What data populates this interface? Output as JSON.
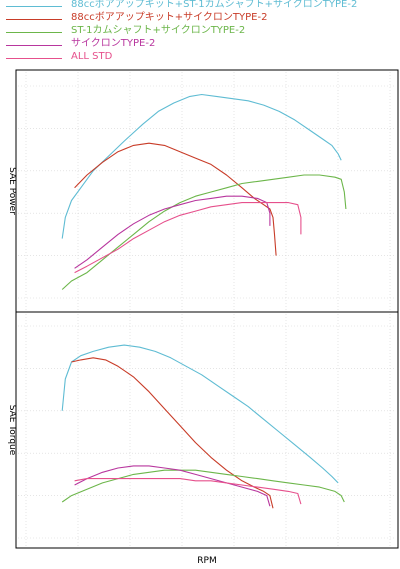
{
  "chart_data": {
    "type": "line",
    "xlabel": "RPM",
    "legend": {
      "placement": "top-left",
      "items": [
        {
          "label": "88ccボアアップキット+ST-1カムシャフト+サイクロンTYPE-2",
          "color": "#5fbcd3"
        },
        {
          "label": "88ccボアアップキット+サイクロンTYPE-2",
          "color": "#c83c28"
        },
        {
          "label": "ST-1カムシャフト+サイクロンTYPE-2",
          "color": "#6cb64a"
        },
        {
          "label": "サイクロンTYPE-2",
          "color": "#b8369e"
        },
        {
          "label": "ALL STD",
          "color": "#e6508c"
        }
      ]
    },
    "grid": true,
    "panels": [
      {
        "ylabel": "SAE Power",
        "series": [
          {
            "color": "#5fbcd3",
            "points": [
              [
                0.02,
                0.28
              ],
              [
                0.03,
                0.38
              ],
              [
                0.05,
                0.46
              ],
              [
                0.08,
                0.52
              ],
              [
                0.12,
                0.6
              ],
              [
                0.17,
                0.67
              ],
              [
                0.22,
                0.74
              ],
              [
                0.28,
                0.82
              ],
              [
                0.33,
                0.88
              ],
              [
                0.38,
                0.92
              ],
              [
                0.43,
                0.95
              ],
              [
                0.47,
                0.96
              ],
              [
                0.52,
                0.95
              ],
              [
                0.57,
                0.94
              ],
              [
                0.62,
                0.93
              ],
              [
                0.67,
                0.91
              ],
              [
                0.72,
                0.88
              ],
              [
                0.77,
                0.84
              ],
              [
                0.82,
                0.79
              ],
              [
                0.86,
                0.75
              ],
              [
                0.89,
                0.72
              ],
              [
                0.91,
                0.68
              ],
              [
                0.92,
                0.65
              ]
            ]
          },
          {
            "color": "#c83c28",
            "points": [
              [
                0.06,
                0.52
              ],
              [
                0.1,
                0.58
              ],
              [
                0.15,
                0.64
              ],
              [
                0.2,
                0.69
              ],
              [
                0.25,
                0.72
              ],
              [
                0.3,
                0.73
              ],
              [
                0.35,
                0.72
              ],
              [
                0.4,
                0.69
              ],
              [
                0.45,
                0.66
              ],
              [
                0.5,
                0.63
              ],
              [
                0.55,
                0.58
              ],
              [
                0.6,
                0.52
              ],
              [
                0.64,
                0.47
              ],
              [
                0.67,
                0.44
              ],
              [
                0.69,
                0.42
              ],
              [
                0.7,
                0.38
              ],
              [
                0.705,
                0.3
              ],
              [
                0.71,
                0.2
              ]
            ]
          },
          {
            "color": "#6cb64a",
            "points": [
              [
                0.02,
                0.04
              ],
              [
                0.05,
                0.08
              ],
              [
                0.1,
                0.12
              ],
              [
                0.15,
                0.18
              ],
              [
                0.2,
                0.24
              ],
              [
                0.25,
                0.3
              ],
              [
                0.3,
                0.36
              ],
              [
                0.35,
                0.41
              ],
              [
                0.4,
                0.45
              ],
              [
                0.45,
                0.48
              ],
              [
                0.5,
                0.5
              ],
              [
                0.55,
                0.52
              ],
              [
                0.6,
                0.54
              ],
              [
                0.65,
                0.55
              ],
              [
                0.7,
                0.56
              ],
              [
                0.75,
                0.57
              ],
              [
                0.8,
                0.58
              ],
              [
                0.85,
                0.58
              ],
              [
                0.9,
                0.57
              ],
              [
                0.92,
                0.56
              ],
              [
                0.93,
                0.5
              ],
              [
                0.935,
                0.42
              ]
            ]
          },
          {
            "color": "#b8369e",
            "points": [
              [
                0.06,
                0.14
              ],
              [
                0.1,
                0.18
              ],
              [
                0.15,
                0.24
              ],
              [
                0.2,
                0.3
              ],
              [
                0.25,
                0.35
              ],
              [
                0.3,
                0.39
              ],
              [
                0.35,
                0.42
              ],
              [
                0.4,
                0.44
              ],
              [
                0.45,
                0.46
              ],
              [
                0.5,
                0.47
              ],
              [
                0.55,
                0.48
              ],
              [
                0.6,
                0.48
              ],
              [
                0.65,
                0.47
              ],
              [
                0.68,
                0.45
              ],
              [
                0.69,
                0.4
              ],
              [
                0.69,
                0.34
              ]
            ]
          },
          {
            "color": "#e6508c",
            "points": [
              [
                0.06,
                0.12
              ],
              [
                0.1,
                0.15
              ],
              [
                0.15,
                0.19
              ],
              [
                0.2,
                0.23
              ],
              [
                0.25,
                0.28
              ],
              [
                0.3,
                0.32
              ],
              [
                0.35,
                0.36
              ],
              [
                0.4,
                0.39
              ],
              [
                0.45,
                0.41
              ],
              [
                0.5,
                0.43
              ],
              [
                0.55,
                0.44
              ],
              [
                0.6,
                0.45
              ],
              [
                0.65,
                0.45
              ],
              [
                0.7,
                0.45
              ],
              [
                0.75,
                0.45
              ],
              [
                0.78,
                0.44
              ],
              [
                0.79,
                0.38
              ],
              [
                0.79,
                0.3
              ]
            ]
          }
        ]
      },
      {
        "ylabel": "SAE Torque",
        "series": [
          {
            "color": "#5fbcd3",
            "points": [
              [
                0.02,
                0.6
              ],
              [
                0.03,
                0.75
              ],
              [
                0.05,
                0.83
              ],
              [
                0.08,
                0.86
              ],
              [
                0.12,
                0.88
              ],
              [
                0.17,
                0.9
              ],
              [
                0.22,
                0.91
              ],
              [
                0.27,
                0.9
              ],
              [
                0.32,
                0.88
              ],
              [
                0.37,
                0.85
              ],
              [
                0.42,
                0.81
              ],
              [
                0.47,
                0.77
              ],
              [
                0.52,
                0.72
              ],
              [
                0.57,
                0.67
              ],
              [
                0.62,
                0.62
              ],
              [
                0.67,
                0.56
              ],
              [
                0.72,
                0.5
              ],
              [
                0.77,
                0.44
              ],
              [
                0.82,
                0.38
              ],
              [
                0.86,
                0.33
              ],
              [
                0.89,
                0.29
              ],
              [
                0.91,
                0.26
              ]
            ]
          },
          {
            "color": "#c83c28",
            "points": [
              [
                0.05,
                0.83
              ],
              [
                0.08,
                0.84
              ],
              [
                0.12,
                0.85
              ],
              [
                0.16,
                0.84
              ],
              [
                0.2,
                0.81
              ],
              [
                0.25,
                0.76
              ],
              [
                0.3,
                0.69
              ],
              [
                0.35,
                0.61
              ],
              [
                0.4,
                0.53
              ],
              [
                0.45,
                0.45
              ],
              [
                0.5,
                0.38
              ],
              [
                0.55,
                0.32
              ],
              [
                0.6,
                0.27
              ],
              [
                0.64,
                0.24
              ],
              [
                0.67,
                0.22
              ],
              [
                0.69,
                0.2
              ],
              [
                0.7,
                0.14
              ]
            ]
          },
          {
            "color": "#6cb64a",
            "points": [
              [
                0.02,
                0.17
              ],
              [
                0.05,
                0.2
              ],
              [
                0.1,
                0.23
              ],
              [
                0.15,
                0.26
              ],
              [
                0.2,
                0.28
              ],
              [
                0.25,
                0.3
              ],
              [
                0.3,
                0.31
              ],
              [
                0.35,
                0.32
              ],
              [
                0.4,
                0.32
              ],
              [
                0.45,
                0.32
              ],
              [
                0.5,
                0.31
              ],
              [
                0.55,
                0.3
              ],
              [
                0.6,
                0.29
              ],
              [
                0.65,
                0.28
              ],
              [
                0.7,
                0.27
              ],
              [
                0.75,
                0.26
              ],
              [
                0.8,
                0.25
              ],
              [
                0.85,
                0.24
              ],
              [
                0.9,
                0.22
              ],
              [
                0.92,
                0.2
              ],
              [
                0.93,
                0.17
              ]
            ]
          },
          {
            "color": "#b8369e",
            "points": [
              [
                0.06,
                0.25
              ],
              [
                0.1,
                0.28
              ],
              [
                0.15,
                0.31
              ],
              [
                0.2,
                0.33
              ],
              [
                0.25,
                0.34
              ],
              [
                0.3,
                0.34
              ],
              [
                0.35,
                0.33
              ],
              [
                0.4,
                0.32
              ],
              [
                0.45,
                0.3
              ],
              [
                0.5,
                0.28
              ],
              [
                0.55,
                0.26
              ],
              [
                0.6,
                0.24
              ],
              [
                0.65,
                0.22
              ],
              [
                0.68,
                0.2
              ],
              [
                0.69,
                0.15
              ]
            ]
          },
          {
            "color": "#e6508c",
            "points": [
              [
                0.06,
                0.27
              ],
              [
                0.1,
                0.28
              ],
              [
                0.15,
                0.28
              ],
              [
                0.2,
                0.28
              ],
              [
                0.25,
                0.28
              ],
              [
                0.3,
                0.28
              ],
              [
                0.35,
                0.28
              ],
              [
                0.4,
                0.28
              ],
              [
                0.45,
                0.27
              ],
              [
                0.5,
                0.27
              ],
              [
                0.55,
                0.26
              ],
              [
                0.6,
                0.25
              ],
              [
                0.65,
                0.24
              ],
              [
                0.7,
                0.23
              ],
              [
                0.75,
                0.22
              ],
              [
                0.78,
                0.21
              ],
              [
                0.79,
                0.16
              ]
            ]
          }
        ]
      }
    ]
  }
}
